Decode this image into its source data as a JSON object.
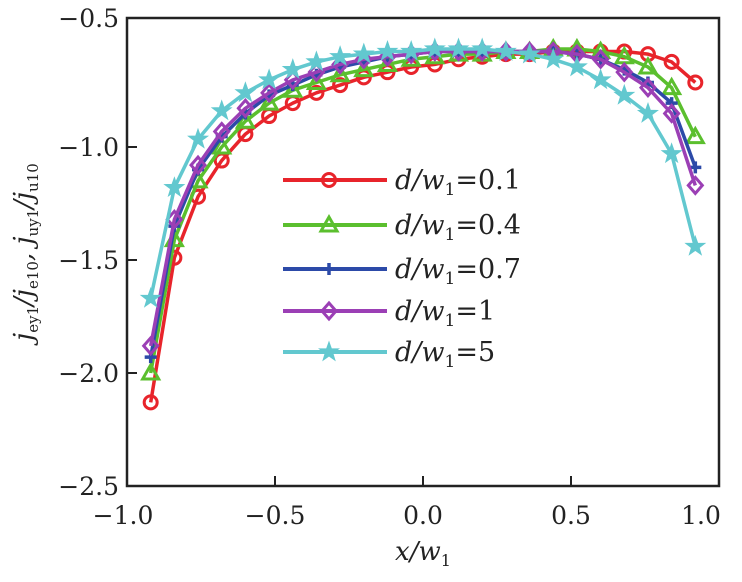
{
  "chart_data": {
    "type": "line",
    "title": "",
    "xlabel": "x/w1",
    "ylabel": "jey1/je10, juy1/ju10",
    "xlim": [
      -1.0,
      1.0
    ],
    "ylim": [
      -2.5,
      -0.5
    ],
    "xticks": [
      "−1.0",
      "−0.5",
      "0.0",
      "0.5",
      "1.0"
    ],
    "xtick_values": [
      -1.0,
      -0.5,
      0.0,
      0.5,
      1.0
    ],
    "yticks": [
      "−0.5",
      "−1.0",
      "−1.5",
      "−2.0",
      "−2.5"
    ],
    "ytick_values": [
      -0.5,
      -1.0,
      -1.5,
      -2.0,
      -2.5
    ],
    "grid": false,
    "legend_position": "center",
    "x": [
      -0.92,
      -0.84,
      -0.76,
      -0.68,
      -0.6,
      -0.52,
      -0.44,
      -0.36,
      -0.28,
      -0.2,
      -0.12,
      -0.04,
      0.04,
      0.12,
      0.2,
      0.28,
      0.36,
      0.44,
      0.52,
      0.6,
      0.68,
      0.76,
      0.84,
      0.92
    ],
    "series": [
      {
        "name": "d/w1 = 0.1",
        "label_main": "d/",
        "label_sub_base": "w",
        "label_sub": "1",
        "label_val": "=0.1",
        "color": "#e8242b",
        "marker": "circle",
        "values": [
          -2.13,
          -1.49,
          -1.22,
          -1.06,
          -0.95,
          -0.88,
          -0.83,
          -0.79,
          -0.76,
          -0.73,
          -0.71,
          -0.69,
          -0.68,
          -0.66,
          -0.65,
          -0.64,
          -0.64,
          -0.63,
          -0.63,
          -0.63,
          -0.63,
          -0.64,
          -0.67,
          -0.75
        ]
      },
      {
        "name": "d/w1 = 0.4",
        "label_main": "d/",
        "label_sub_base": "w",
        "label_sub": "1",
        "label_val": "=0.4",
        "color": "#5bbf2e",
        "marker": "triangle",
        "values": [
          -2.0,
          -1.41,
          -1.15,
          -1.0,
          -0.9,
          -0.83,
          -0.78,
          -0.75,
          -0.72,
          -0.7,
          -0.68,
          -0.66,
          -0.65,
          -0.64,
          -0.64,
          -0.63,
          -0.63,
          -0.62,
          -0.62,
          -0.63,
          -0.65,
          -0.69,
          -0.77,
          -0.96
        ]
      },
      {
        "name": "d/w1 = 0.7",
        "label_main": "d/",
        "label_sub_base": "w",
        "label_sub": "1",
        "label_val": "=0.7",
        "color": "#2c4aa8",
        "marker": "plus",
        "values": [
          -1.93,
          -1.35,
          -1.1,
          -0.96,
          -0.87,
          -0.8,
          -0.76,
          -0.72,
          -0.69,
          -0.67,
          -0.65,
          -0.64,
          -0.63,
          -0.63,
          -0.63,
          -0.63,
          -0.63,
          -0.63,
          -0.64,
          -0.66,
          -0.7,
          -0.75,
          -0.83,
          -1.09
        ]
      },
      {
        "name": "d/w1 = 1",
        "label_main": "d/",
        "label_sub_base": "w",
        "label_sub": "1",
        "label_val": "=1",
        "color": "#9b3fb5",
        "marker": "diamond",
        "values": [
          -1.88,
          -1.32,
          -1.08,
          -0.94,
          -0.85,
          -0.79,
          -0.74,
          -0.71,
          -0.68,
          -0.66,
          -0.65,
          -0.64,
          -0.63,
          -0.63,
          -0.63,
          -0.63,
          -0.63,
          -0.63,
          -0.64,
          -0.66,
          -0.71,
          -0.77,
          -0.87,
          -1.17
        ]
      },
      {
        "name": "d/w1 = 5",
        "label_main": "d/",
        "label_sub_base": "w",
        "label_sub": "1",
        "label_val": "=5",
        "color": "#62c8cf",
        "marker": "star",
        "values": [
          -1.67,
          -1.18,
          -0.97,
          -0.86,
          -0.79,
          -0.74,
          -0.7,
          -0.67,
          -0.65,
          -0.64,
          -0.63,
          -0.63,
          -0.62,
          -0.62,
          -0.62,
          -0.63,
          -0.64,
          -0.66,
          -0.69,
          -0.74,
          -0.8,
          -0.87,
          -1.03,
          -1.44
        ]
      }
    ]
  },
  "labels": {
    "x_main": "x/",
    "x_sub_base": "w",
    "x_sub": "1",
    "y_parts": [
      "j",
      "ey1",
      "/j",
      "e10",
      ", j",
      "uy1",
      "/j",
      "u10"
    ]
  }
}
